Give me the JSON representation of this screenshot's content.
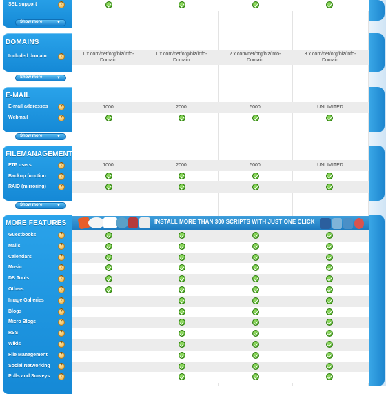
{
  "columns": 4,
  "colors": {
    "accent": "#1a8ed8",
    "check": "#3d9e16",
    "rowband": "#ececec"
  },
  "sections": {
    "ssl": {
      "row_label": "SSL support",
      "show_more": "Show more",
      "values": [
        "check",
        "check",
        "check",
        "check"
      ]
    },
    "domains": {
      "title": "DOMAINS",
      "rows": [
        {
          "label": "Included domain",
          "values": [
            [
              "1 x com/net/org/biz/info-",
              "Domain"
            ],
            [
              "1 x com/net/org/biz/info-",
              "Domain"
            ],
            [
              "2 x com/net/org/biz/info-",
              "Domain"
            ],
            [
              "3 x com/net/org/biz/info-",
              "Domain"
            ]
          ]
        }
      ],
      "show_more": "Show more"
    },
    "email": {
      "title": "E-MAIL",
      "rows": [
        {
          "label": "E-mail addresses",
          "values": [
            "1000",
            "2000",
            "5000",
            "UNLIMITED"
          ]
        },
        {
          "label": "Webmail",
          "values": [
            "check",
            "check",
            "check",
            "check"
          ]
        }
      ],
      "show_more": "Show more"
    },
    "filemanagement": {
      "title": "FILEMANAGEMENT",
      "rows": [
        {
          "label": "FTP users",
          "values": [
            "1000",
            "2000",
            "5000",
            "UNLIMITED"
          ]
        },
        {
          "label": "Backup function",
          "values": [
            "check",
            "check",
            "check",
            "check"
          ]
        },
        {
          "label": "RAID (mirroring)",
          "values": [
            "check",
            "check",
            "check",
            "check"
          ]
        }
      ],
      "show_more": "Show more"
    },
    "more": {
      "title": "MORE FEATURES",
      "banner_text": "INSTALL MORE THAN 300 SCRIPTS WITH JUST ONE CLICK",
      "rows": [
        {
          "label": "Guestbooks",
          "values": [
            "check",
            "check",
            "check",
            "check"
          ]
        },
        {
          "label": "Mails",
          "values": [
            "check",
            "check",
            "check",
            "check"
          ]
        },
        {
          "label": "Calendars",
          "values": [
            "check",
            "check",
            "check",
            "check"
          ]
        },
        {
          "label": "Music",
          "values": [
            "check",
            "check",
            "check",
            "check"
          ]
        },
        {
          "label": "DB Tools",
          "values": [
            "check",
            "check",
            "check",
            "check"
          ]
        },
        {
          "label": "Others",
          "values": [
            "check",
            "check",
            "check",
            "check"
          ]
        },
        {
          "label": "Image Galleries",
          "values": [
            "",
            "check",
            "check",
            "check"
          ]
        },
        {
          "label": "Blogs",
          "values": [
            "",
            "check",
            "check",
            "check"
          ]
        },
        {
          "label": "Micro Blogs",
          "values": [
            "",
            "check",
            "check",
            "check"
          ]
        },
        {
          "label": "RSS",
          "values": [
            "",
            "check",
            "check",
            "check"
          ]
        },
        {
          "label": "Wikis",
          "values": [
            "",
            "check",
            "check",
            "check"
          ]
        },
        {
          "label": "File Management",
          "values": [
            "",
            "check",
            "check",
            "check"
          ]
        },
        {
          "label": "Social Networking",
          "values": [
            "",
            "check",
            "check",
            "check"
          ]
        },
        {
          "label": "Polls and Surveys",
          "values": [
            "",
            "check",
            "check",
            "check"
          ]
        }
      ]
    }
  }
}
